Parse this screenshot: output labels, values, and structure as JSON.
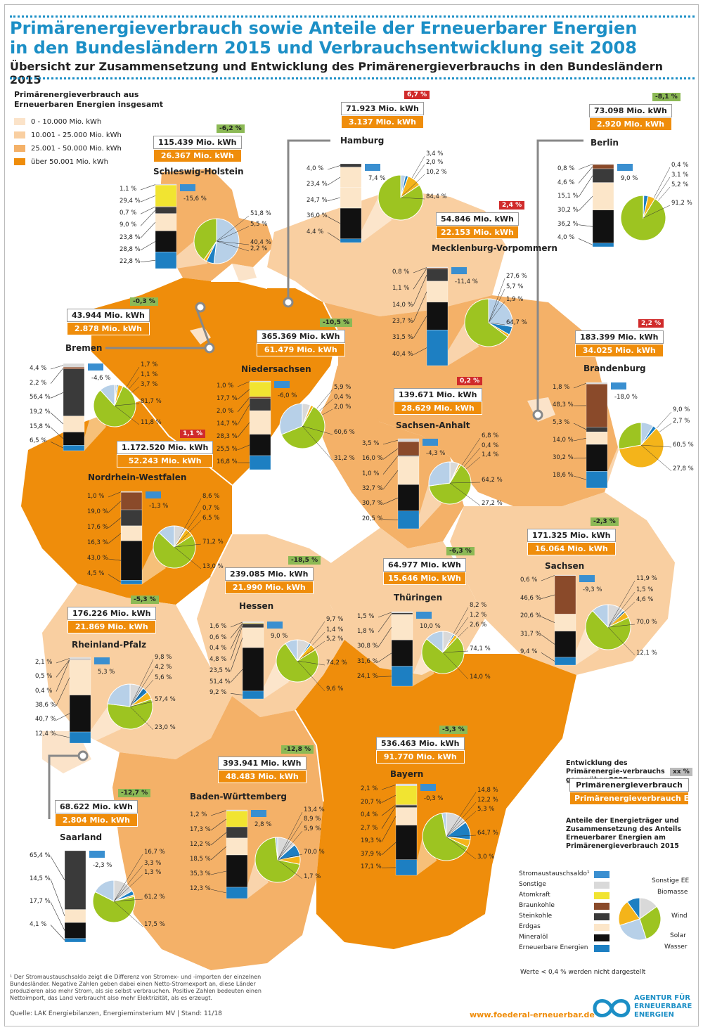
{
  "title": "Primärenergieverbrauch sowie Anteile der Erneuerbarer Energien in den Bundesländern 2015 und Verbrauchsentwicklung seit 2008",
  "subtitle": "Übersicht zur Zusammensetzung und Entwicklung des Primärenergieverbrauchs in den Bundesländern 2015",
  "legend_total": {
    "title": "Primärenergieverbrauch aus Erneuerbaren Energien insgesamt",
    "items": [
      {
        "label": "0 - 10.000 Mio. kWh",
        "color": "#fbe3c9"
      },
      {
        "label": "10.001 - 25.000 Mio. kWh",
        "color": "#f9cfa1"
      },
      {
        "label": "25.001 - 50.000 Mio. kWh",
        "color": "#f4b168"
      },
      {
        "label": "über 50.001 Mio. kWh",
        "color": "#ef8d0b"
      }
    ]
  },
  "colors": {
    "sonstige": "#d9d9d9",
    "atom": "#f1e431",
    "braunkohle": "#8a4a2a",
    "steinkohle": "#3a3a3a",
    "erdgas": "#fce6c9",
    "mineraloel": "#111111",
    "ee": "#1d7fc2",
    "pie_bio": "#9dc421",
    "pie_wind": "#b7d0e8",
    "pie_solar": "#f4b41a",
    "pie_wasser": "#1d7fc2",
    "pie_sonst": "#d9d9d9",
    "trade": "#3a8fd0"
  },
  "states": [
    {
      "id": "sh",
      "name": "Schleswig-Holstein",
      "primary": "115.439 Mio. kWh",
      "ee": "26.367 Mio. kWh",
      "change": "-6,2 %",
      "change_sign": "neg",
      "bar_labels": [
        "1,1 %",
        "29,4 %",
        "0,7 %",
        "9,0 %",
        "23,8 %",
        "28,8 %",
        "22,8 %"
      ],
      "trade": "-15,6 %",
      "pie_labels": [
        "51,8 %",
        "5,5 %",
        "2,2 %",
        "40,4 %"
      ]
    },
    {
      "id": "hh",
      "name": "Hamburg",
      "primary": "71.923 Mio. kWh",
      "ee": "3.137 Mio. kWh",
      "change": "6,7 %",
      "change_sign": "pos",
      "bar_labels": [
        "4,0 %",
        "23,4 %",
        "24,7 %",
        "36,0 %",
        "4,4 %"
      ],
      "trade": "7,4 %",
      "pie_labels": [
        "3,4 %",
        "2,0 %",
        "10,2 %",
        "84,4 %"
      ]
    },
    {
      "id": "be",
      "name": "Berlin",
      "primary": "73.098 Mio. kWh",
      "ee": "2.920 Mio. kWh",
      "change": "-8,1 %",
      "change_sign": "neg",
      "bar_labels": [
        "0,8 %",
        "4,6 %",
        "15,1 %",
        "30,2 %",
        "36,2 %",
        "4,0 %"
      ],
      "trade": "9,0 %",
      "pie_labels": [
        "0,4 %",
        "3,1 %",
        "5,2 %",
        "91,2 %"
      ]
    },
    {
      "id": "mv",
      "name": "Mecklenburg-Vorpommern",
      "primary": "54.846 Mio. kWh",
      "ee": "22.153 Mio. kWh",
      "change": "2,4 %",
      "change_sign": "pos",
      "bar_labels": [
        "0,8 %",
        "1,1 %",
        "14,0 %",
        "23,7 %",
        "31,5 %",
        "40,4 %"
      ],
      "trade": "-11,4 %",
      "pie_labels": [
        "27,6 %",
        "5,7 %",
        "1,9 %",
        "64,7 %"
      ]
    },
    {
      "id": "hb",
      "name": "Bremen",
      "primary": "43.944 Mio. kWh",
      "ee": "2.878 Mio. kWh",
      "change": "-0,3 %",
      "change_sign": "neg",
      "bar_labels": [
        "4,4 %",
        "2,2 %",
        "56,4 %",
        "19,2 %",
        "15,8 %",
        "6,5 %"
      ],
      "trade": "-4,6 %",
      "pie_labels": [
        "1,7 %",
        "1,1 %",
        "3,7 %",
        "81,7 %",
        "11,8 %"
      ]
    },
    {
      "id": "ni",
      "name": "Niedersachsen",
      "primary": "365.369 Mio. kWh",
      "ee": "61.479 Mio. kWh",
      "change": "-10,5 %",
      "change_sign": "neg",
      "bar_labels": [
        "1,0 %",
        "17,7 %",
        "2,0 %",
        "14,7 %",
        "28,3 %",
        "25,5 %",
        "16,8 %"
      ],
      "trade": "-6,0 %",
      "pie_labels": [
        "5,9 %",
        "0,4 %",
        "2,0 %",
        "60,6 %",
        "31,2 %"
      ]
    },
    {
      "id": "bb",
      "name": "Brandenburg",
      "primary": "183.399 Mio. kWh",
      "ee": "34.025 Mio. kWh",
      "change": "2,2 %",
      "change_sign": "pos",
      "bar_labels": [
        "1,8 %",
        "48,3 %",
        "5,3 %",
        "14,0 %",
        "30,2 %",
        "18,6 %"
      ],
      "trade": "-18,0 %",
      "pie_labels": [
        "9,0 %",
        "2,7 %",
        "60,5 %",
        "27,8 %"
      ]
    },
    {
      "id": "st",
      "name": "Sachsen-Anhalt",
      "primary": "139.671 Mio. kWh",
      "ee": "28.629 Mio. kWh",
      "change": "0,2 %",
      "change_sign": "pos",
      "bar_labels": [
        "3,5 %",
        "16,0 %",
        "1,0 %",
        "32,7 %",
        "30,7 %",
        "20,5 %"
      ],
      "trade": "-4,3 %",
      "pie_labels": [
        "6,8 %",
        "0,4 %",
        "1,4 %",
        "64,2 %",
        "27,2 %"
      ]
    },
    {
      "id": "nw",
      "name": "Nordrhein-Westfalen",
      "primary": "1.172.520 Mio. kWh",
      "ee": "52.243 Mio. kWh",
      "change": "1,1 %",
      "change_sign": "pos",
      "bar_labels": [
        "1,0 %",
        "19,0 %",
        "17,6 %",
        "16,3 %",
        "43,0 %",
        "4,5 %"
      ],
      "trade": "-1,3 %",
      "pie_labels": [
        "8,6 %",
        "0,7 %",
        "6,5 %",
        "71,2 %",
        "13,0 %"
      ]
    },
    {
      "id": "sn",
      "name": "Sachsen",
      "primary": "171.325 Mio. kWh",
      "ee": "16.064 Mio. kWh",
      "change": "-2,3 %",
      "change_sign": "neg",
      "bar_labels": [
        "0,6 %",
        "46,6 %",
        "20,6 %",
        "31,7 %",
        "9,4 %"
      ],
      "trade": "-9,3 %",
      "pie_labels": [
        "11,9 %",
        "1,5 %",
        "4,6 %",
        "70,0 %",
        "12,1 %"
      ]
    },
    {
      "id": "th",
      "name": "Thüringen",
      "primary": "64.977 Mio. kWh",
      "ee": "15.646 Mio. kWh",
      "change": "-6,3 %",
      "change_sign": "neg",
      "bar_labels": [
        "1,5 %",
        "1,8 %",
        "30,8 %",
        "31,6 %",
        "24,1 %"
      ],
      "trade": "10,0 %",
      "pie_labels": [
        "8,2 %",
        "1,2 %",
        "2,6 %",
        "74,1 %",
        "14,0 %"
      ]
    },
    {
      "id": "he",
      "name": "Hessen",
      "primary": "239.085 Mio. kWh",
      "ee": "21.990 Mio. kWh",
      "change": "-18,5 %",
      "change_sign": "neg",
      "bar_labels": [
        "1,6 %",
        "0,6 %",
        "0,4 %",
        "4,8 %",
        "23,5 %",
        "51,4 %",
        "9,2 %"
      ],
      "trade": "9,0 %",
      "pie_labels": [
        "9,7 %",
        "1,4 %",
        "5,2 %",
        "74,2 %",
        "9,6 %"
      ]
    },
    {
      "id": "rp",
      "name": "Rheinland-Pfalz",
      "primary": "176.226 Mio. kWh",
      "ee": "21.869 Mio. kWh",
      "change": "-5,3 %",
      "change_sign": "neg",
      "bar_labels": [
        "2,1 %",
        "0,5 %",
        "0,4 %",
        "38,6 %",
        "40,7 %",
        "12,4 %"
      ],
      "trade": "5,3 %",
      "pie_labels": [
        "9,8 %",
        "4,2 %",
        "5,6 %",
        "57,4 %",
        "23,0 %"
      ]
    },
    {
      "id": "by",
      "name": "Bayern",
      "primary": "536.463 Mio. kWh",
      "ee": "91.770 Mio. kWh",
      "change": "-5,3 %",
      "change_sign": "neg",
      "bar_labels": [
        "2,1 %",
        "20,7 %",
        "0,4 %",
        "2,7 %",
        "19,3 %",
        "37,9 %",
        "17,1 %"
      ],
      "trade": "-0,3 %",
      "pie_labels": [
        "14,8 %",
        "12,2 %",
        "5,3 %",
        "64,7 %",
        "3,0 %"
      ]
    },
    {
      "id": "bw",
      "name": "Baden-Württemberg",
      "primary": "393.941 Mio. kWh",
      "ee": "48.483 Mio. kWh",
      "change": "-12,8 %",
      "change_sign": "neg",
      "bar_labels": [
        "1,2 %",
        "17,3 %",
        "12,2 %",
        "18,5 %",
        "35,3 %",
        "12,3 %"
      ],
      "trade": "2,8 %",
      "pie_labels": [
        "13,4 %",
        "8,9 %",
        "5,9 %",
        "70,0 %",
        "1,7 %"
      ]
    },
    {
      "id": "sl",
      "name": "Saarland",
      "primary": "68.622 Mio. kWh",
      "ee": "2.804 Mio. kWh",
      "change": "-12,7 %",
      "change_sign": "neg",
      "bar_labels": [
        "65,4 %",
        "14,5 %",
        "17,7 %",
        "4,1 %"
      ],
      "trade": "-2,3 %",
      "pie_labels": [
        "16,7 %",
        "3,3 %",
        "1,3 %",
        "61,2 %",
        "17,5 %"
      ]
    }
  ],
  "legend_explain": {
    "title": "Entwicklung des Primärenergie-verbrauchs gegenüber 2008",
    "badge": "xx %",
    "primary": "Primärenergieverbrauch",
    "ee": "Primärenergieverbrauch EE",
    "anteile": "Anteile der Energieträger und Zusammensetzung des Anteils Erneuerbarer Energien am Primärenergieverbrauch 2015"
  },
  "legend_carriers": [
    {
      "label": "Stromaustauschsaldo¹",
      "color": "#3a8fd0"
    },
    {
      "label": "Sonstige",
      "color": "#d9d9d9"
    },
    {
      "label": "Atomkraft",
      "color": "#f1e431"
    },
    {
      "label": "Braunkohle",
      "color": "#8a4a2a"
    },
    {
      "label": "Steinkohle",
      "color": "#3a3a3a"
    },
    {
      "label": "Erdgas",
      "color": "#fce6c9"
    },
    {
      "label": "Mineralöl",
      "color": "#111111"
    },
    {
      "label": "Erneuerbare Energien",
      "color": "#1d7fc2"
    }
  ],
  "legend_pie": [
    "Sonstige EE",
    "Biomasse",
    "Wind",
    "Solar",
    "Wasser"
  ],
  "note_small": "Werte < 0,4 % werden nicht dargestellt",
  "footnote": "¹ Der Stromaustauschsaldo zeigt die Differenz von Stromex- und -importen der einzelnen Bundesländer. Negative Zahlen geben dabei einen Netto-Stromexport an, diese Länder produzieren also mehr Strom, als sie selbst verbrauchen. Positive Zahlen bedeuten einen Nettoimport, das Land verbraucht also mehr Elektrizität, als es erzeugt.",
  "source": "Quelle:  LAK Energiebilanzen, Energieminsterium MV  |  Stand: 11/18",
  "url": "www.foederal-erneuerbar.de",
  "logo_text": [
    "AGENTUR FÜR",
    "ERNEUERBARE",
    "ENERGIEN"
  ]
}
